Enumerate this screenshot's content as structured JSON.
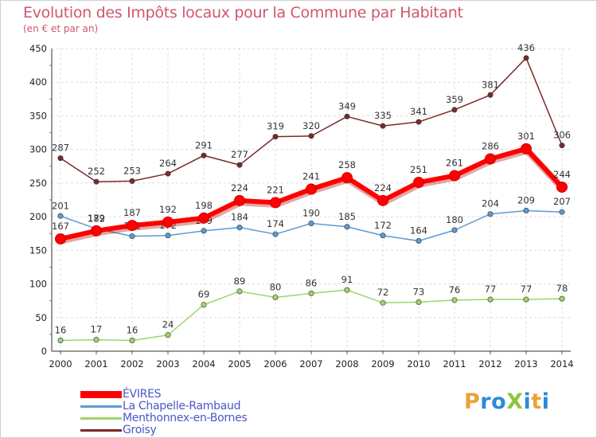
{
  "title": "Evolution des Impôts locaux pour la Commune par Habitant",
  "subtitle": "(en € et par an)",
  "brand": {
    "letters": [
      {
        "ch": "P",
        "color": "#e8a23a"
      },
      {
        "ch": "r",
        "color": "#2e8ad8"
      },
      {
        "ch": "o",
        "color": "#2e8ad8"
      },
      {
        "ch": "X",
        "color": "#8cc63f"
      },
      {
        "ch": "i",
        "color": "#2e8ad8"
      },
      {
        "ch": "t",
        "color": "#e8a23a"
      },
      {
        "ch": "i",
        "color": "#2e8ad8"
      }
    ]
  },
  "chart_data": {
    "type": "line",
    "title": "Evolution des Impôts locaux pour la Commune par Habitant",
    "ylabel": "(en € et par an)",
    "x": [
      "2000",
      "2001",
      "2002",
      "2003",
      "2004",
      "2005",
      "2006",
      "2007",
      "2008",
      "2009",
      "2010",
      "2011",
      "2012",
      "2013",
      "2014"
    ],
    "ylim": [
      0,
      450
    ],
    "yticks": [
      0,
      50,
      100,
      150,
      200,
      250,
      300,
      350,
      400,
      450
    ],
    "legend_position": "bottom-left",
    "series": [
      {
        "name": "Groisy",
        "color": "#7b2a2a",
        "values": [
          287,
          252,
          253,
          264,
          291,
          277,
          319,
          320,
          349,
          335,
          341,
          359,
          381,
          436,
          306
        ]
      },
      {
        "name": "Menthonnex-en-Bornes",
        "color": "#9ed46a",
        "values": [
          16,
          17,
          16,
          24,
          69,
          89,
          80,
          86,
          91,
          72,
          73,
          76,
          77,
          77,
          78
        ]
      },
      {
        "name": "La Chapelle-Rambaud",
        "color": "#5b9bd5",
        "values": [
          201,
          182,
          171,
          172,
          179,
          184,
          174,
          190,
          185,
          172,
          164,
          180,
          204,
          209,
          207
        ]
      },
      {
        "name": "ÉVIRES",
        "color": "#ff0000",
        "values": [
          167,
          179,
          187,
          192,
          198,
          224,
          221,
          241,
          258,
          224,
          251,
          261,
          286,
          301,
          244
        ]
      }
    ]
  }
}
